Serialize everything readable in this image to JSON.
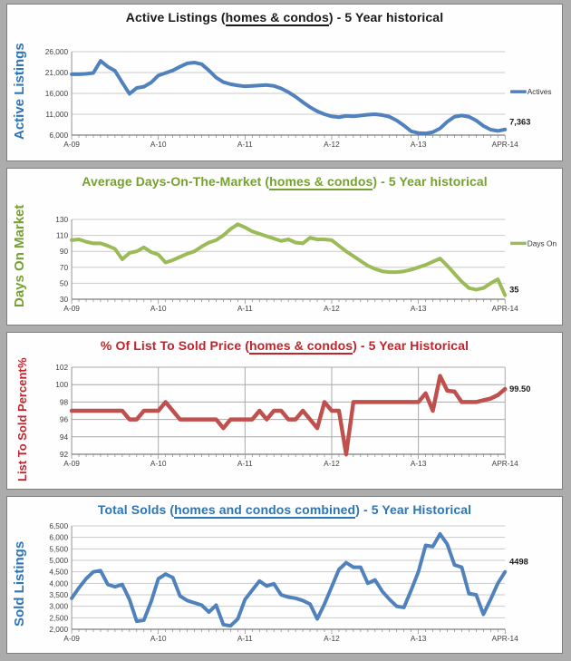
{
  "page": {
    "background": "#acacac",
    "panel_border": "#7f7f7f"
  },
  "xtick_labels": [
    "A-09",
    "A-10",
    "A-11",
    "A-12",
    "A-13",
    "APR-14"
  ],
  "chart_data": [
    {
      "type": "line",
      "name": "active-listings",
      "title_parts": {
        "pre": "Active Listings (",
        "underlined": "homes & condos",
        "post": ") - 5 Year historical"
      },
      "title_color": "#1a1a1a",
      "y_axis_label": "Active Listings",
      "y_axis_label2": "",
      "y_axis_label_color": "#2e75b6",
      "line_color": "#4f81bd",
      "legend": "Actives",
      "end_label": "7,363",
      "ymin": 6000,
      "ymax": 26000,
      "ytick_values": [
        6000,
        11000,
        16000,
        21000,
        26000
      ],
      "ytick_labels": [
        "6,000",
        "11,000",
        "16,000",
        "21,000",
        "26,000"
      ],
      "xtick_labels": [
        "A-09",
        "A-10",
        "A-11",
        "A-12",
        "A-13",
        "APR-14"
      ],
      "x_unit": "month",
      "x_range": [
        "Apr-2009",
        "Apr-2014"
      ],
      "values": [
        20600,
        20600,
        20700,
        20900,
        23800,
        22400,
        21400,
        18600,
        15900,
        17300,
        17600,
        18600,
        20300,
        20900,
        21500,
        22400,
        23200,
        23400,
        23000,
        21500,
        19800,
        18700,
        18200,
        17900,
        17700,
        17800,
        17900,
        18000,
        17800,
        17200,
        16300,
        15200,
        13900,
        12700,
        11700,
        11000,
        10500,
        10300,
        10600,
        10500,
        10700,
        10900,
        11000,
        10800,
        10400,
        9500,
        8300,
        6900,
        6500,
        6400,
        6700,
        7600,
        9200,
        10400,
        10700,
        10400,
        9500,
        8200,
        7300,
        7000,
        7363
      ]
    },
    {
      "type": "line",
      "name": "days-on-market",
      "title_parts": {
        "pre": "Average Days-On-The-Market (",
        "underlined": "homes & condos",
        "post": ") - 5 Year historical"
      },
      "title_color": "#77a033",
      "y_axis_label": "Days On Market",
      "y_axis_label2": "",
      "y_axis_label_color": "#77a033",
      "line_color": "#9bbb59",
      "legend": "Days On",
      "end_label": "35",
      "ymin": 30,
      "ymax": 130,
      "ytick_values": [
        30,
        50,
        70,
        90,
        110,
        130
      ],
      "ytick_labels": [
        "30",
        "50",
        "70",
        "90",
        "110",
        "130"
      ],
      "xtick_labels": [
        "A-09",
        "A-10",
        "A-11",
        "A-12",
        "A-13",
        "APR-14"
      ],
      "x_unit": "month",
      "x_range": [
        "Apr-2009",
        "Apr-2014"
      ],
      "values": [
        104,
        105,
        102,
        100,
        100,
        97,
        93,
        80,
        88,
        90,
        95,
        89,
        86,
        76,
        79,
        83,
        87,
        90,
        96,
        101,
        104,
        110,
        118,
        124,
        120,
        115,
        112,
        109,
        106,
        103,
        105,
        101,
        100,
        107,
        105,
        105,
        104,
        97,
        90,
        84,
        78,
        72,
        68,
        65,
        64,
        64,
        65,
        67,
        70,
        73,
        77,
        81,
        72,
        62,
        52,
        44,
        42,
        44,
        50,
        55,
        35
      ]
    },
    {
      "type": "line",
      "name": "list-to-sold-percent",
      "title_parts": {
        "pre": "% Of List To Sold Price (",
        "underlined": "homes & condos",
        "post": ") - 5 Year Historical"
      },
      "title_color": "#c2232b",
      "y_axis_label": "List To Sold Percent",
      "y_axis_label2": "%",
      "y_axis_label_color": "#c2232b",
      "line_color": "#c0504d",
      "legend": null,
      "end_label": "99.50",
      "ymin": 92,
      "ymax": 102,
      "ytick_values": [
        92,
        94,
        96,
        98,
        100,
        102
      ],
      "ytick_labels": [
        "92",
        "94",
        "96",
        "98",
        "100",
        "102"
      ],
      "xtick_labels": [
        "A-09",
        "A-10",
        "A-11",
        "A-12",
        "A-13",
        "APR-14"
      ],
      "x_unit": "month",
      "x_range": [
        "Apr-2009",
        "Apr-2014"
      ],
      "values": [
        97,
        97,
        97,
        97,
        97,
        97,
        97,
        97,
        96,
        96,
        97,
        97,
        97,
        98,
        97,
        96,
        96,
        96,
        96,
        96,
        96,
        95,
        96,
        96,
        96,
        96,
        97,
        96,
        97,
        97,
        96,
        96,
        97,
        96,
        95,
        98,
        97,
        97,
        92,
        98,
        98,
        98,
        98,
        98,
        98,
        98,
        98,
        98,
        98,
        99,
        97,
        101,
        99.3,
        99.2,
        98,
        98,
        98,
        98.2,
        98.4,
        98.8,
        99.5
      ]
    },
    {
      "type": "line",
      "name": "total-solds",
      "title_parts": {
        "pre": "Total Solds (",
        "underlined": "homes and condos combined",
        "post": ") - 5 Year Historical"
      },
      "title_color": "#2e75b6",
      "y_axis_label": "Sold Listings",
      "y_axis_label2": "",
      "y_axis_label_color": "#2e75b6",
      "line_color": "#4f81bd",
      "legend": null,
      "end_label": "4498",
      "ymin": 2000,
      "ymax": 6500,
      "ytick_values": [
        2000,
        2500,
        3000,
        3500,
        4000,
        4500,
        5000,
        5500,
        6000,
        6500
      ],
      "ytick_labels": [
        "2,000",
        "2,500",
        "3,000",
        "3,500",
        "4,000",
        "4,500",
        "5,000",
        "5,500",
        "6,000",
        "6,500"
      ],
      "xtick_labels": [
        "A-09",
        "A-10",
        "A-11",
        "A-12",
        "A-13",
        "APR-14"
      ],
      "x_unit": "month",
      "x_range": [
        "Apr-2009",
        "Apr-2014"
      ],
      "values": [
        3350,
        3800,
        4200,
        4500,
        4550,
        3950,
        3850,
        3950,
        3300,
        2350,
        2400,
        3200,
        4200,
        4400,
        4250,
        3450,
        3250,
        3150,
        3050,
        2750,
        3050,
        2200,
        2150,
        2450,
        3300,
        3700,
        4100,
        3880,
        3980,
        3500,
        3400,
        3350,
        3250,
        3100,
        2450,
        3100,
        3850,
        4600,
        4900,
        4700,
        4700,
        4000,
        4150,
        3650,
        3300,
        3000,
        2950,
        3700,
        4500,
        5650,
        5600,
        6150,
        5700,
        4800,
        4700,
        3550,
        3500,
        2650,
        3300,
        4000,
        4498
      ]
    }
  ]
}
